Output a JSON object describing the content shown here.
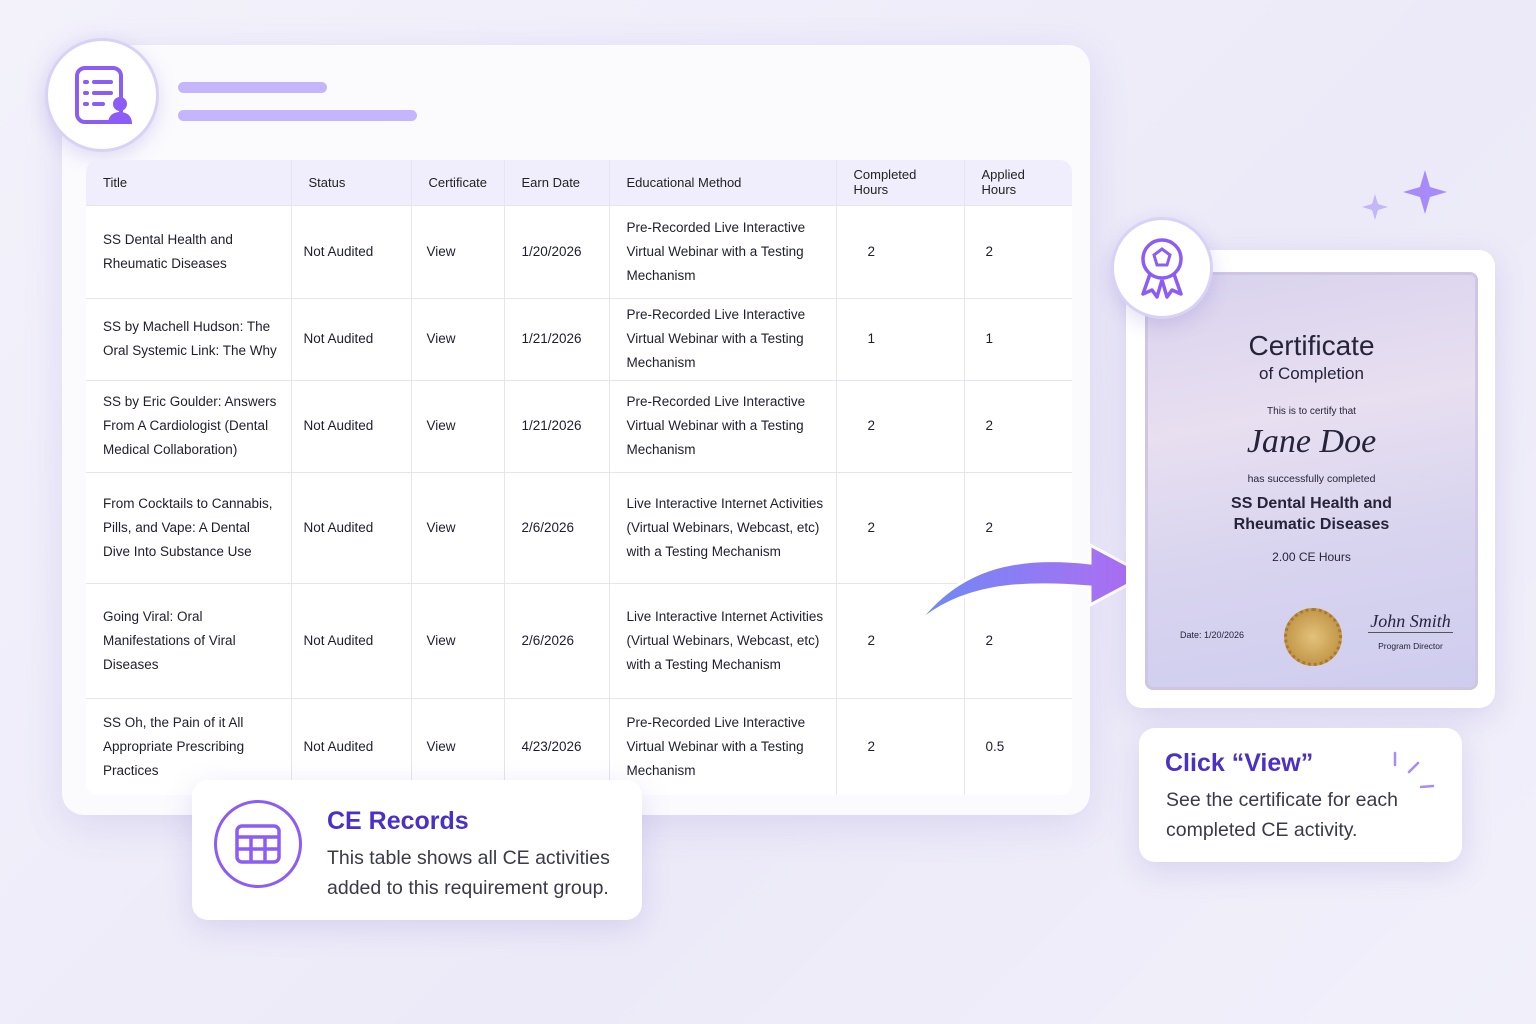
{
  "table": {
    "headers": [
      "Title",
      "Status",
      "Certificate",
      "Earn Date",
      "Educational Method",
      "Completed Hours",
      "Applied Hours"
    ],
    "rows": [
      [
        "SS Dental Health and Rheumatic Diseases",
        "Not Audited",
        "View",
        "1/20/2026",
        "Pre-Recorded Live Interactive Virtual Webinar with a Testing Mechanism",
        2,
        2
      ],
      [
        "SS by Machell Hudson: The Oral Systemic Link: The Why",
        "Not Audited",
        "View",
        "1/21/2026",
        "Pre-Recorded Live Interactive Virtual Webinar with a Testing Mechanism",
        1,
        1
      ],
      [
        "SS by Eric Goulder: Answers From A Cardiologist (Dental Medical Collaboration)",
        "Not Audited",
        "View",
        "1/21/2026",
        "Pre-Recorded Live Interactive Virtual Webinar with a Testing Mechanism",
        2,
        2
      ],
      [
        "From Cocktails to Cannabis, Pills, and Vape: A Dental Dive Into Substance Use",
        "Not Audited",
        "View",
        "2/6/2026",
        "Live Interactive Internet Activities (Virtual Webinars, Webcast, etc) with a Testing Mechanism",
        2,
        2
      ],
      [
        "Going Viral: Oral Manifestations of Viral Diseases",
        "Not Audited",
        "View",
        "2/6/2026",
        "Live Interactive Internet Activities (Virtual Webinars, Webcast, etc) with a Testing Mechanism",
        2,
        2
      ],
      [
        "SS Oh, the Pain of it All Appropriate Prescribing Practices",
        "Not Audited",
        "View",
        "4/23/2026",
        "Pre-Recorded Live Interactive Virtual Webinar with a Testing Mechanism",
        2,
        0.5
      ]
    ]
  },
  "certificate": {
    "title": "Certificate",
    "subtitle": "of Completion",
    "intro": "This is to certify that",
    "name": "Jane Doe",
    "completed_text": "has successfully completed",
    "course": "SS Dental Health and Rheumatic Diseases",
    "hours": "2.00 CE Hours",
    "date": "Date: 1/20/2026",
    "signature": "John Smith",
    "signer_title": "Program Director"
  },
  "callouts": [
    {
      "title": "CE Records",
      "text": "This table shows all CE activities added to this requirement group."
    },
    {
      "title": "Click “View”",
      "text": "See the certificate for each completed CE activity."
    }
  ]
}
